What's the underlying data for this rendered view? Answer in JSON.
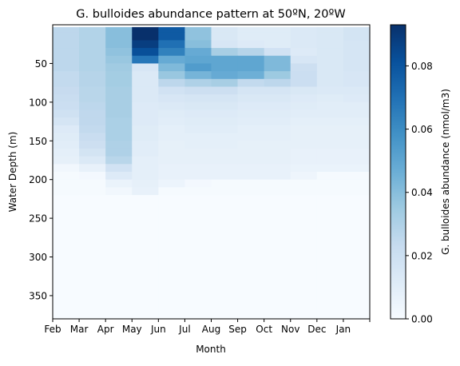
{
  "chart_data": {
    "type": "heatmap",
    "title": "G. bulloides abundance pattern at 50ºN, 20ºW",
    "xlabel": "Month",
    "ylabel": "Water Depth (m)",
    "colorbar_label": "G. bulloides abundance (nmol/m3)",
    "colormap": "Blues",
    "colors": {
      "low": "#f7fbff",
      "high": "#08306b"
    },
    "x_tick_labels": [
      "Feb",
      "Mar",
      "Apr",
      "May",
      "Jun",
      "Jul",
      "Aug",
      "Sep",
      "Oct",
      "Nov",
      "Dec",
      "Jan"
    ],
    "y_ticks": [
      50,
      100,
      150,
      200,
      250,
      300,
      350
    ],
    "y_tick_labels": [
      "50",
      "100",
      "150",
      "200",
      "250",
      "300",
      "350"
    ],
    "ylim": [
      380,
      0
    ],
    "colorbar_ticks": [
      0.0,
      0.02,
      0.04,
      0.06,
      0.08
    ],
    "colorbar_tick_labels": [
      "0.00",
      "0.02",
      "0.04",
      "0.06",
      "0.08"
    ],
    "colorbar_range": [
      0.0,
      0.093
    ],
    "y_top_depth": 3,
    "x_columns": [
      "Feb",
      "Mar",
      "Apr",
      "May",
      "Jun",
      "Jul",
      "Aug",
      "Sep",
      "Oct",
      "Nov",
      "Dec",
      "Jan"
    ],
    "depth_edges": [
      3,
      10,
      20,
      30,
      40,
      50,
      60,
      70,
      80,
      90,
      100,
      110,
      120,
      130,
      140,
      150,
      160,
      170,
      180,
      190,
      200,
      210,
      220,
      380
    ],
    "values": [
      [
        0.026,
        0.029,
        0.04,
        0.093,
        0.078,
        0.038,
        0.014,
        0.011,
        0.011,
        0.013,
        0.014,
        0.017
      ],
      [
        0.026,
        0.029,
        0.04,
        0.093,
        0.078,
        0.038,
        0.014,
        0.011,
        0.011,
        0.013,
        0.014,
        0.017
      ],
      [
        0.026,
        0.029,
        0.04,
        0.088,
        0.07,
        0.04,
        0.015,
        0.012,
        0.011,
        0.013,
        0.014,
        0.016
      ],
      [
        0.026,
        0.029,
        0.038,
        0.082,
        0.064,
        0.048,
        0.032,
        0.028,
        0.018,
        0.012,
        0.014,
        0.016
      ],
      [
        0.026,
        0.029,
        0.036,
        0.068,
        0.048,
        0.05,
        0.05,
        0.05,
        0.042,
        0.015,
        0.014,
        0.016
      ],
      [
        0.026,
        0.029,
        0.034,
        0.015,
        0.042,
        0.054,
        0.05,
        0.05,
        0.042,
        0.02,
        0.014,
        0.016
      ],
      [
        0.024,
        0.028,
        0.033,
        0.013,
        0.036,
        0.044,
        0.048,
        0.046,
        0.035,
        0.021,
        0.014,
        0.015
      ],
      [
        0.024,
        0.028,
        0.033,
        0.013,
        0.026,
        0.03,
        0.032,
        0.024,
        0.026,
        0.021,
        0.014,
        0.015
      ],
      [
        0.023,
        0.027,
        0.032,
        0.013,
        0.018,
        0.02,
        0.02,
        0.016,
        0.016,
        0.014,
        0.013,
        0.013
      ],
      [
        0.022,
        0.027,
        0.032,
        0.013,
        0.015,
        0.016,
        0.016,
        0.014,
        0.014,
        0.012,
        0.011,
        0.012
      ],
      [
        0.021,
        0.026,
        0.032,
        0.012,
        0.013,
        0.014,
        0.014,
        0.012,
        0.012,
        0.011,
        0.01,
        0.01
      ],
      [
        0.019,
        0.025,
        0.032,
        0.012,
        0.011,
        0.012,
        0.012,
        0.011,
        0.011,
        0.01,
        0.01,
        0.01
      ],
      [
        0.016,
        0.025,
        0.031,
        0.012,
        0.01,
        0.011,
        0.011,
        0.01,
        0.01,
        0.009,
        0.009,
        0.009
      ],
      [
        0.012,
        0.024,
        0.031,
        0.011,
        0.009,
        0.01,
        0.01,
        0.009,
        0.009,
        0.008,
        0.008,
        0.008
      ],
      [
        0.011,
        0.022,
        0.031,
        0.011,
        0.009,
        0.009,
        0.009,
        0.009,
        0.009,
        0.008,
        0.008,
        0.008
      ],
      [
        0.01,
        0.02,
        0.03,
        0.01,
        0.008,
        0.009,
        0.009,
        0.008,
        0.008,
        0.008,
        0.008,
        0.008
      ],
      [
        0.009,
        0.017,
        0.03,
        0.01,
        0.008,
        0.008,
        0.008,
        0.008,
        0.008,
        0.007,
        0.007,
        0.007
      ],
      [
        0.008,
        0.013,
        0.027,
        0.009,
        0.008,
        0.008,
        0.008,
        0.008,
        0.008,
        0.007,
        0.007,
        0.007
      ],
      [
        0.003,
        0.007,
        0.018,
        0.009,
        0.007,
        0.007,
        0.007,
        0.007,
        0.007,
        0.006,
        0.006,
        0.006
      ],
      [
        0.001,
        0.002,
        0.012,
        0.009,
        0.007,
        0.007,
        0.007,
        0.007,
        0.007,
        0.004,
        0.001,
        0.001
      ],
      [
        0.001,
        0.001,
        0.006,
        0.008,
        0.005,
        0.002,
        0.001,
        0.001,
        0.001,
        0.001,
        0.001,
        0.001
      ],
      [
        0.001,
        0.001,
        0.003,
        0.007,
        0.001,
        0.001,
        0.001,
        0.001,
        0.001,
        0.001,
        0.001,
        0.001
      ],
      [
        0.0,
        0.0,
        0.0,
        0.0,
        0.0,
        0.0,
        0.0,
        0.0,
        0.0,
        0.0,
        0.0,
        0.0
      ]
    ],
    "grid": false
  }
}
